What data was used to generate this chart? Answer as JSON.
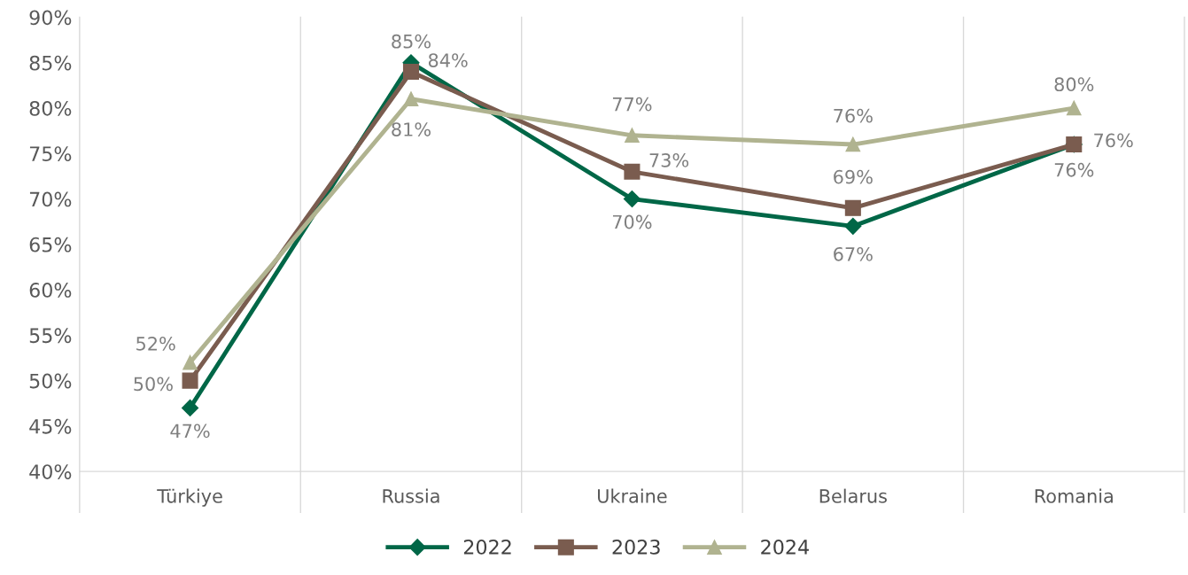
{
  "chart_data": {
    "type": "line",
    "categories": [
      "Türkiye",
      "Russia",
      "Ukraine",
      "Belarus",
      "Romania"
    ],
    "series": [
      {
        "name": "2022",
        "color": "#006747",
        "marker": "diamond",
        "values": [
          47,
          85,
          70,
          67,
          76
        ],
        "value_labels": [
          "47%",
          "85%",
          "70%",
          "67%",
          "76%"
        ]
      },
      {
        "name": "2023",
        "color": "#7a5c4f",
        "marker": "square",
        "values": [
          50,
          84,
          73,
          69,
          76
        ],
        "value_labels": [
          "50%",
          "84%",
          "73%",
          "69%",
          "76%"
        ]
      },
      {
        "name": "2024",
        "color": "#b0b390",
        "marker": "triangle",
        "values": [
          52,
          81,
          77,
          76,
          80
        ],
        "value_labels": [
          "52%",
          "81%",
          "77%",
          "76%",
          "80%"
        ]
      }
    ],
    "ylim": [
      40,
      90
    ],
    "yticks": [
      {
        "value": 40,
        "label": "40%"
      },
      {
        "value": 45,
        "label": "45%"
      },
      {
        "value": 50,
        "label": "50%"
      },
      {
        "value": 55,
        "label": "55%"
      },
      {
        "value": 60,
        "label": "60%"
      },
      {
        "value": 65,
        "label": "65%"
      },
      {
        "value": 70,
        "label": "70%"
      },
      {
        "value": 75,
        "label": "75%"
      },
      {
        "value": 80,
        "label": "80%"
      },
      {
        "value": 85,
        "label": "85%"
      },
      {
        "value": 90,
        "label": "90%"
      }
    ],
    "grid": "x",
    "legend": "bottom",
    "line_style": "solid"
  }
}
